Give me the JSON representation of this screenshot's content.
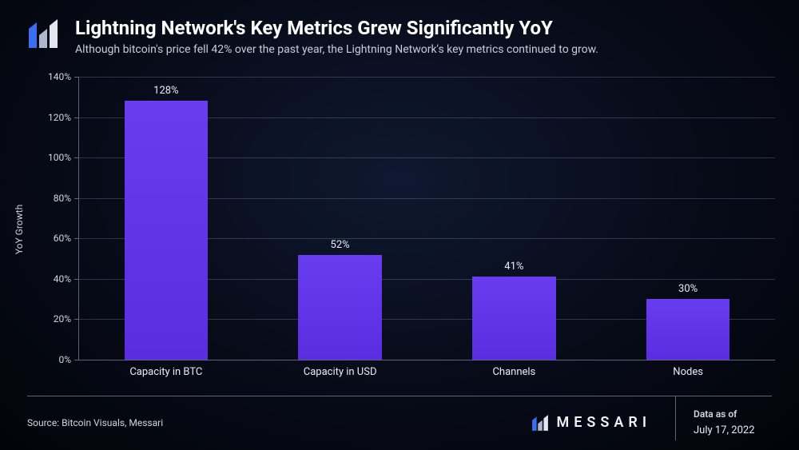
{
  "header": {
    "title": "Lightning Network's Key Metrics Grew Significantly YoY",
    "subtitle": "Although bitcoin's price fell 42% over the past year, the Lightning Network's key metrics continued to grow."
  },
  "chart": {
    "type": "bar",
    "y_axis_label": "YoY Growth",
    "ylim_min": 0,
    "ylim_max": 140,
    "ytick_step": 20,
    "tick_suffix": "%",
    "grid_color": "rgba(120,132,158,0.35)",
    "axis_color": "#5b6478",
    "bar_color": "#6a3cf0",
    "bar_width_pct": 12,
    "label_fontsize": 12,
    "tick_fontsize": 12,
    "value_label_fontsize": 13,
    "categories": [
      "Capacity in BTC",
      "Capacity in USD",
      "Channels",
      "Nodes"
    ],
    "values": [
      128,
      52,
      41,
      30
    ],
    "value_labels": [
      "128%",
      "52%",
      "41%",
      "30%"
    ]
  },
  "footer": {
    "source_prefix": "Source: ",
    "source": "Bitcoin Visuals, Messari",
    "brand": "MESSARI",
    "date_label": "Data as of",
    "date_value": "July 17, 2022"
  },
  "colors": {
    "background_center": "#0f1830",
    "background_edge": "#020409",
    "text_primary": "#ffffff",
    "text_secondary": "#cfd6e2",
    "logo_accent": "#3a6ff0"
  }
}
